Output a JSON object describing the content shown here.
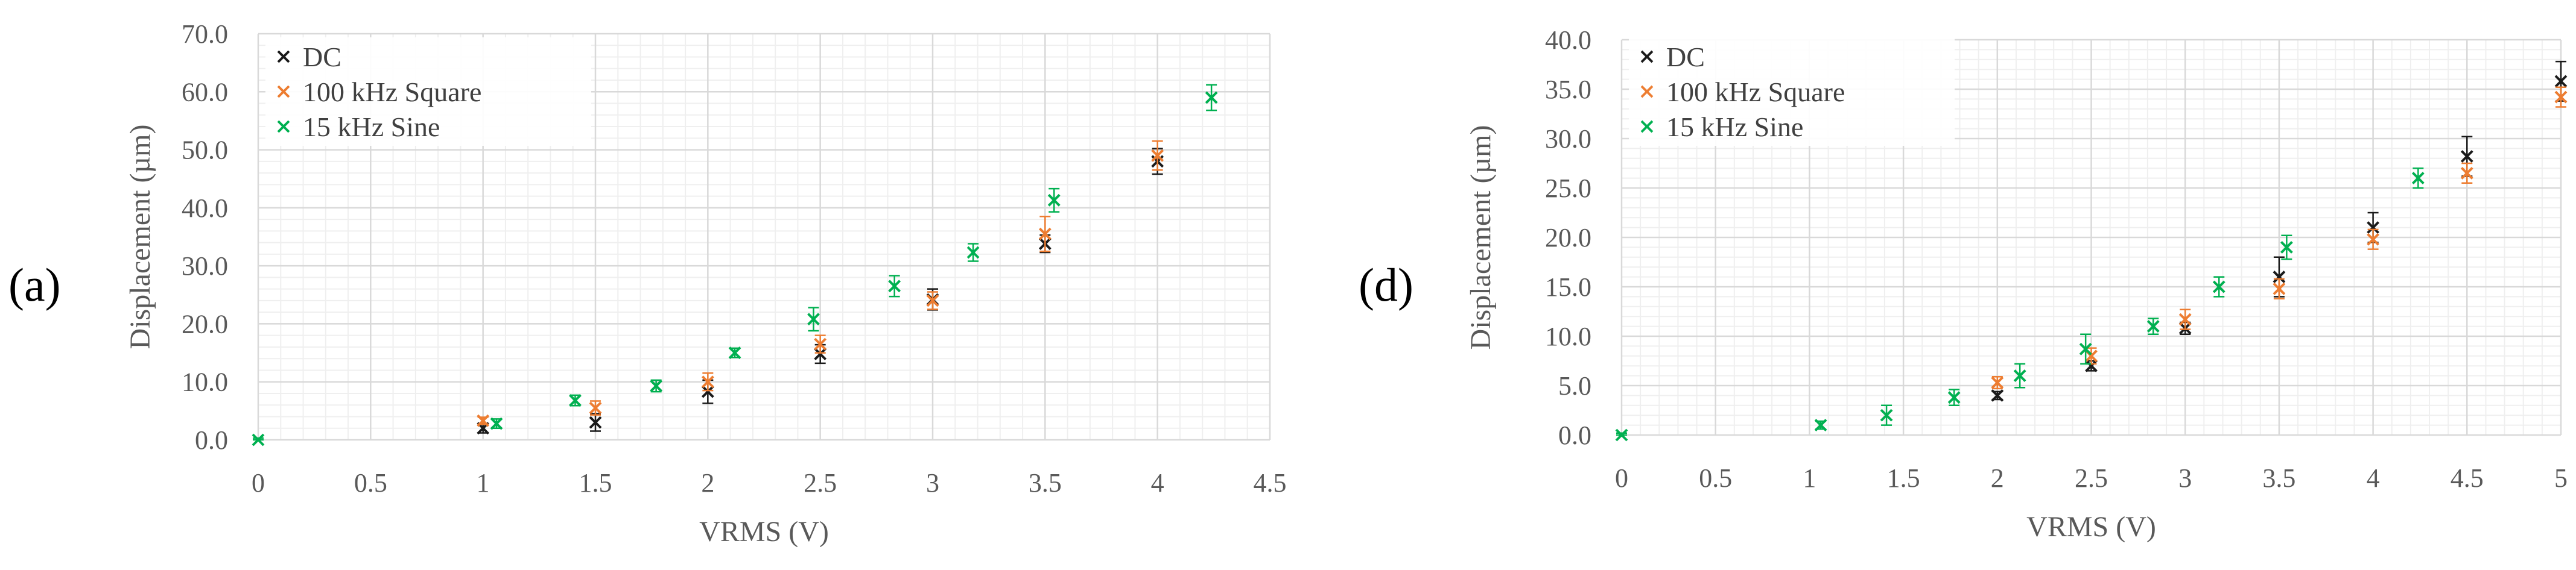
{
  "panels": {
    "a": {
      "label": "(a)"
    },
    "d": {
      "label": "(d)"
    }
  },
  "chart_data": [
    {
      "type": "scatter",
      "panel": "(a)",
      "xlabel": "VRMS (V)",
      "ylabel": "Displacement (µm)",
      "xlim": [
        0,
        4.5
      ],
      "ylim": [
        0,
        70
      ],
      "xticks": [
        0,
        0.5,
        1,
        1.5,
        2,
        2.5,
        3,
        3.5,
        4,
        4.5
      ],
      "xtick_labels": [
        "0",
        "0.5",
        "1",
        "1.5",
        "2",
        "2.5",
        "3",
        "3.5",
        "4",
        "4.5"
      ],
      "yticks": [
        0,
        10,
        20,
        30,
        40,
        50,
        60,
        70
      ],
      "ytick_labels": [
        "0.0",
        "10.0",
        "20.0",
        "30.0",
        "40.0",
        "50.0",
        "60.0",
        "70.0"
      ],
      "grid": true,
      "legend_position": "top-left",
      "series": [
        {
          "name": "DC",
          "color": "#1a1a1a",
          "x": [
            1,
            1.5,
            2,
            2.5,
            3,
            3.5,
            4
          ],
          "y": [
            2.0,
            3.0,
            8.3,
            14.8,
            24.2,
            33.8,
            48.0
          ],
          "err": [
            0.8,
            1.5,
            2.0,
            1.6,
            1.8,
            1.5,
            2.2
          ]
        },
        {
          "name": "100 kHz Square",
          "color": "#ED7D31",
          "x": [
            1,
            1.5,
            2,
            2.5,
            3,
            3.5,
            4
          ],
          "y": [
            3.3,
            5.5,
            10.0,
            16.5,
            24.0,
            35.5,
            49.0
          ],
          "err": [
            0.6,
            1.2,
            1.5,
            1.5,
            1.5,
            3.0,
            2.5
          ]
        },
        {
          "name": "15 kHz Sine",
          "color": "#00B050",
          "x": [
            0,
            1.06,
            1.41,
            1.77,
            2.12,
            2.47,
            2.83,
            3.18,
            3.54,
            4.24
          ],
          "y": [
            0.0,
            2.8,
            6.8,
            9.3,
            15.0,
            20.8,
            26.5,
            32.3,
            41.3,
            59.0
          ],
          "err": [
            0.3,
            0.8,
            0.9,
            1.0,
            0.8,
            2.0,
            1.8,
            1.5,
            2.0,
            2.2
          ]
        }
      ]
    },
    {
      "type": "scatter",
      "panel": "(d)",
      "xlabel": "VRMS (V)",
      "ylabel": "Displacement (µm)",
      "xlim": [
        0,
        5
      ],
      "ylim": [
        0,
        40
      ],
      "xticks": [
        0,
        0.5,
        1,
        1.5,
        2,
        2.5,
        3,
        3.5,
        4,
        4.5,
        5
      ],
      "xtick_labels": [
        "0",
        "0.5",
        "1",
        "1.5",
        "2",
        "2.5",
        "3",
        "3.5",
        "4",
        "4.5",
        "5"
      ],
      "yticks": [
        0,
        5,
        10,
        15,
        20,
        25,
        30,
        35,
        40
      ],
      "ytick_labels": [
        "0.0",
        "5.0",
        "10.0",
        "15.0",
        "20.0",
        "25.0",
        "30.0",
        "35.0",
        "40.0"
      ],
      "grid": true,
      "legend_position": "top-left",
      "series": [
        {
          "name": "DC",
          "color": "#1a1a1a",
          "x": [
            2,
            2.5,
            3,
            3.5,
            4,
            4.5,
            5
          ],
          "y": [
            4.0,
            7.0,
            10.8,
            16.0,
            21.0,
            28.2,
            35.8
          ],
          "err": [
            0.4,
            0.5,
            0.6,
            2.0,
            1.5,
            2.0,
            2.0
          ]
        },
        {
          "name": "100 kHz Square",
          "color": "#ED7D31",
          "x": [
            2,
            2.5,
            3,
            3.5,
            4,
            4.5,
            5
          ],
          "y": [
            5.3,
            8.0,
            11.7,
            14.8,
            19.8,
            26.5,
            34.2
          ],
          "err": [
            0.6,
            0.8,
            1.0,
            1.0,
            1.0,
            1.0,
            1.0
          ]
        },
        {
          "name": "15 kHz Sine",
          "color": "#00B050",
          "x": [
            0,
            1.06,
            1.41,
            1.77,
            2.12,
            2.47,
            2.83,
            3.18,
            3.54,
            4.24
          ],
          "y": [
            0.0,
            1.0,
            2.0,
            3.8,
            6.0,
            8.7,
            11.0,
            15.0,
            19.0,
            26.0
          ],
          "err": [
            0.2,
            0.4,
            1.0,
            0.8,
            1.2,
            1.5,
            0.8,
            1.0,
            1.2,
            1.0
          ]
        }
      ]
    }
  ]
}
